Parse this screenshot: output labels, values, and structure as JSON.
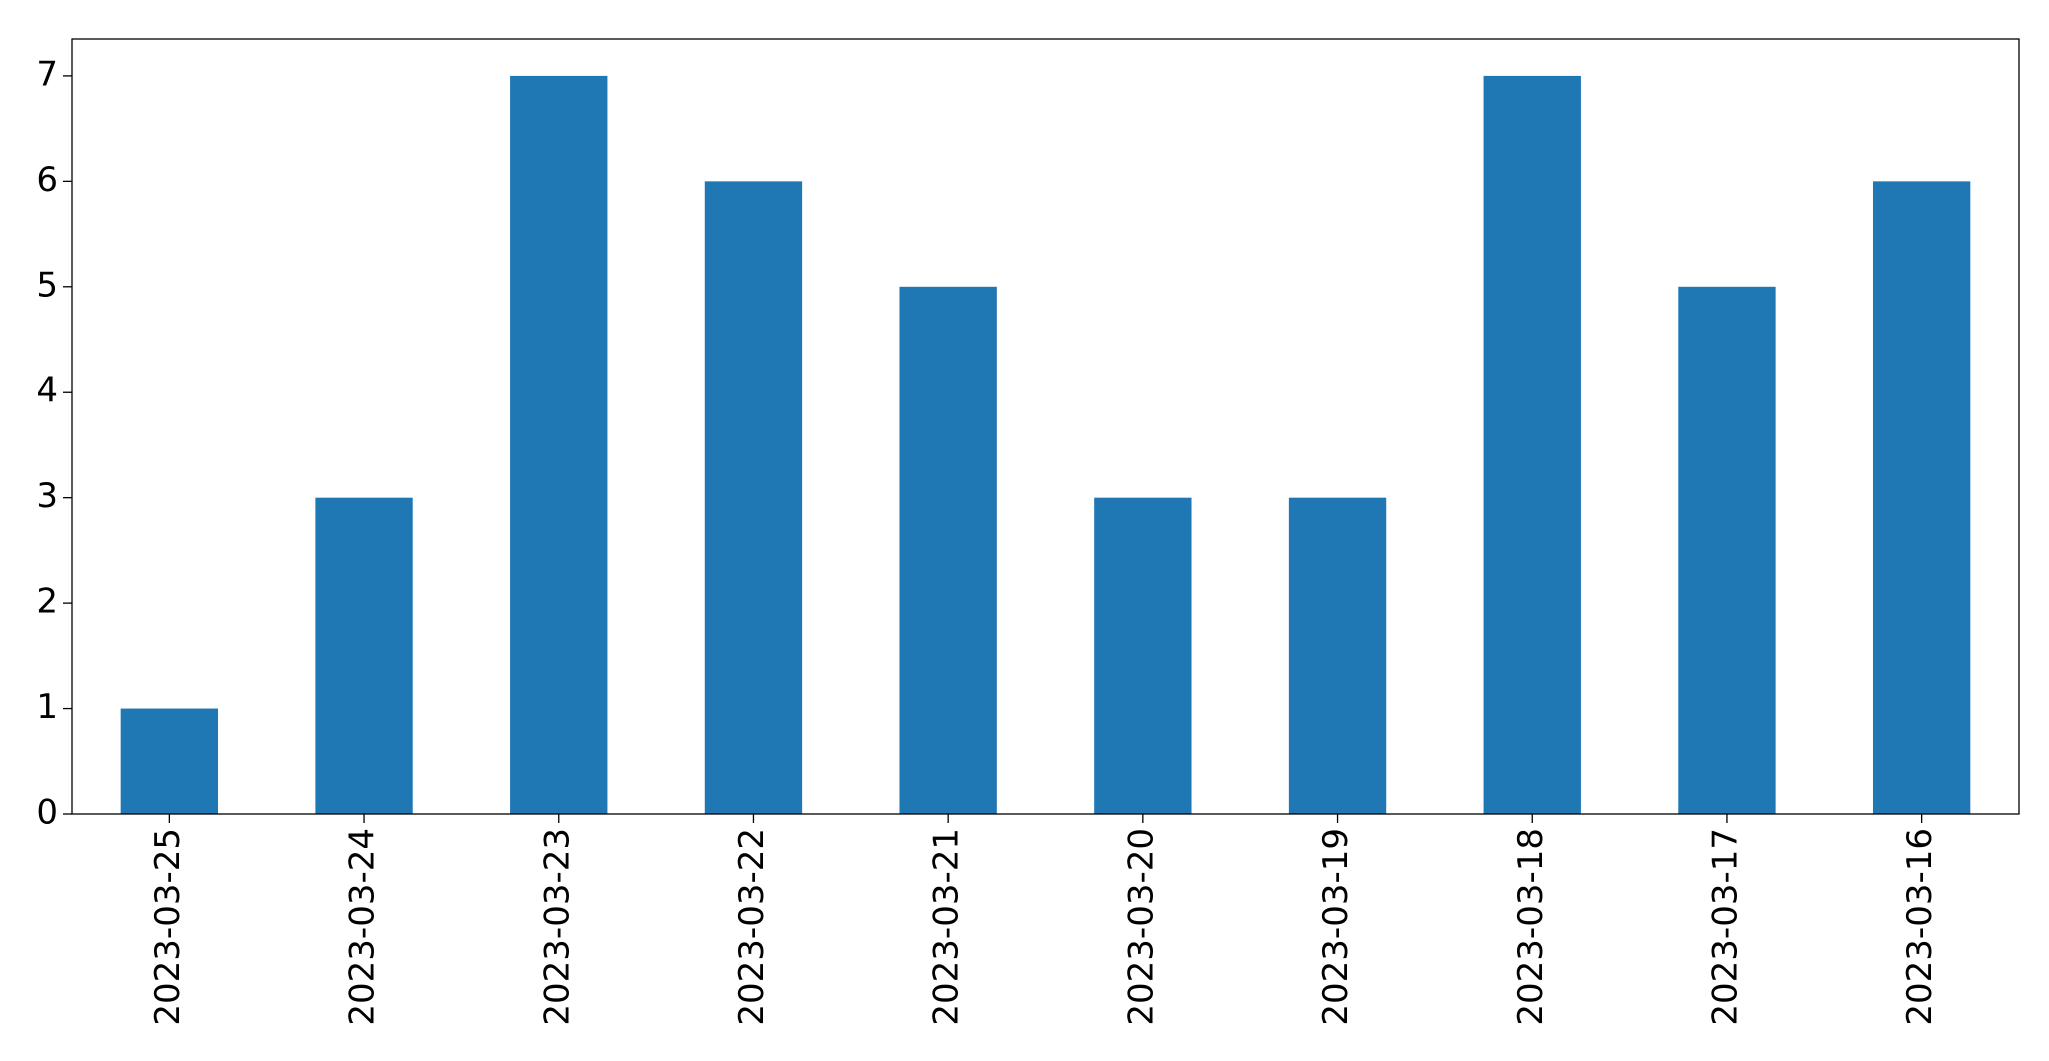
{
  "chart_data": {
    "type": "bar",
    "categories": [
      "2023-03-25",
      "2023-03-24",
      "2023-03-23",
      "2023-03-22",
      "2023-03-21",
      "2023-03-20",
      "2023-03-19",
      "2023-03-18",
      "2023-03-17",
      "2023-03-16"
    ],
    "values": [
      1,
      3,
      7,
      6,
      5,
      3,
      3,
      7,
      5,
      6
    ],
    "color": "#1f77b4",
    "ylim": [
      0,
      7.35
    ],
    "yticks": [
      0,
      1,
      2,
      3,
      4,
      5,
      6,
      7
    ],
    "grid": false
  }
}
